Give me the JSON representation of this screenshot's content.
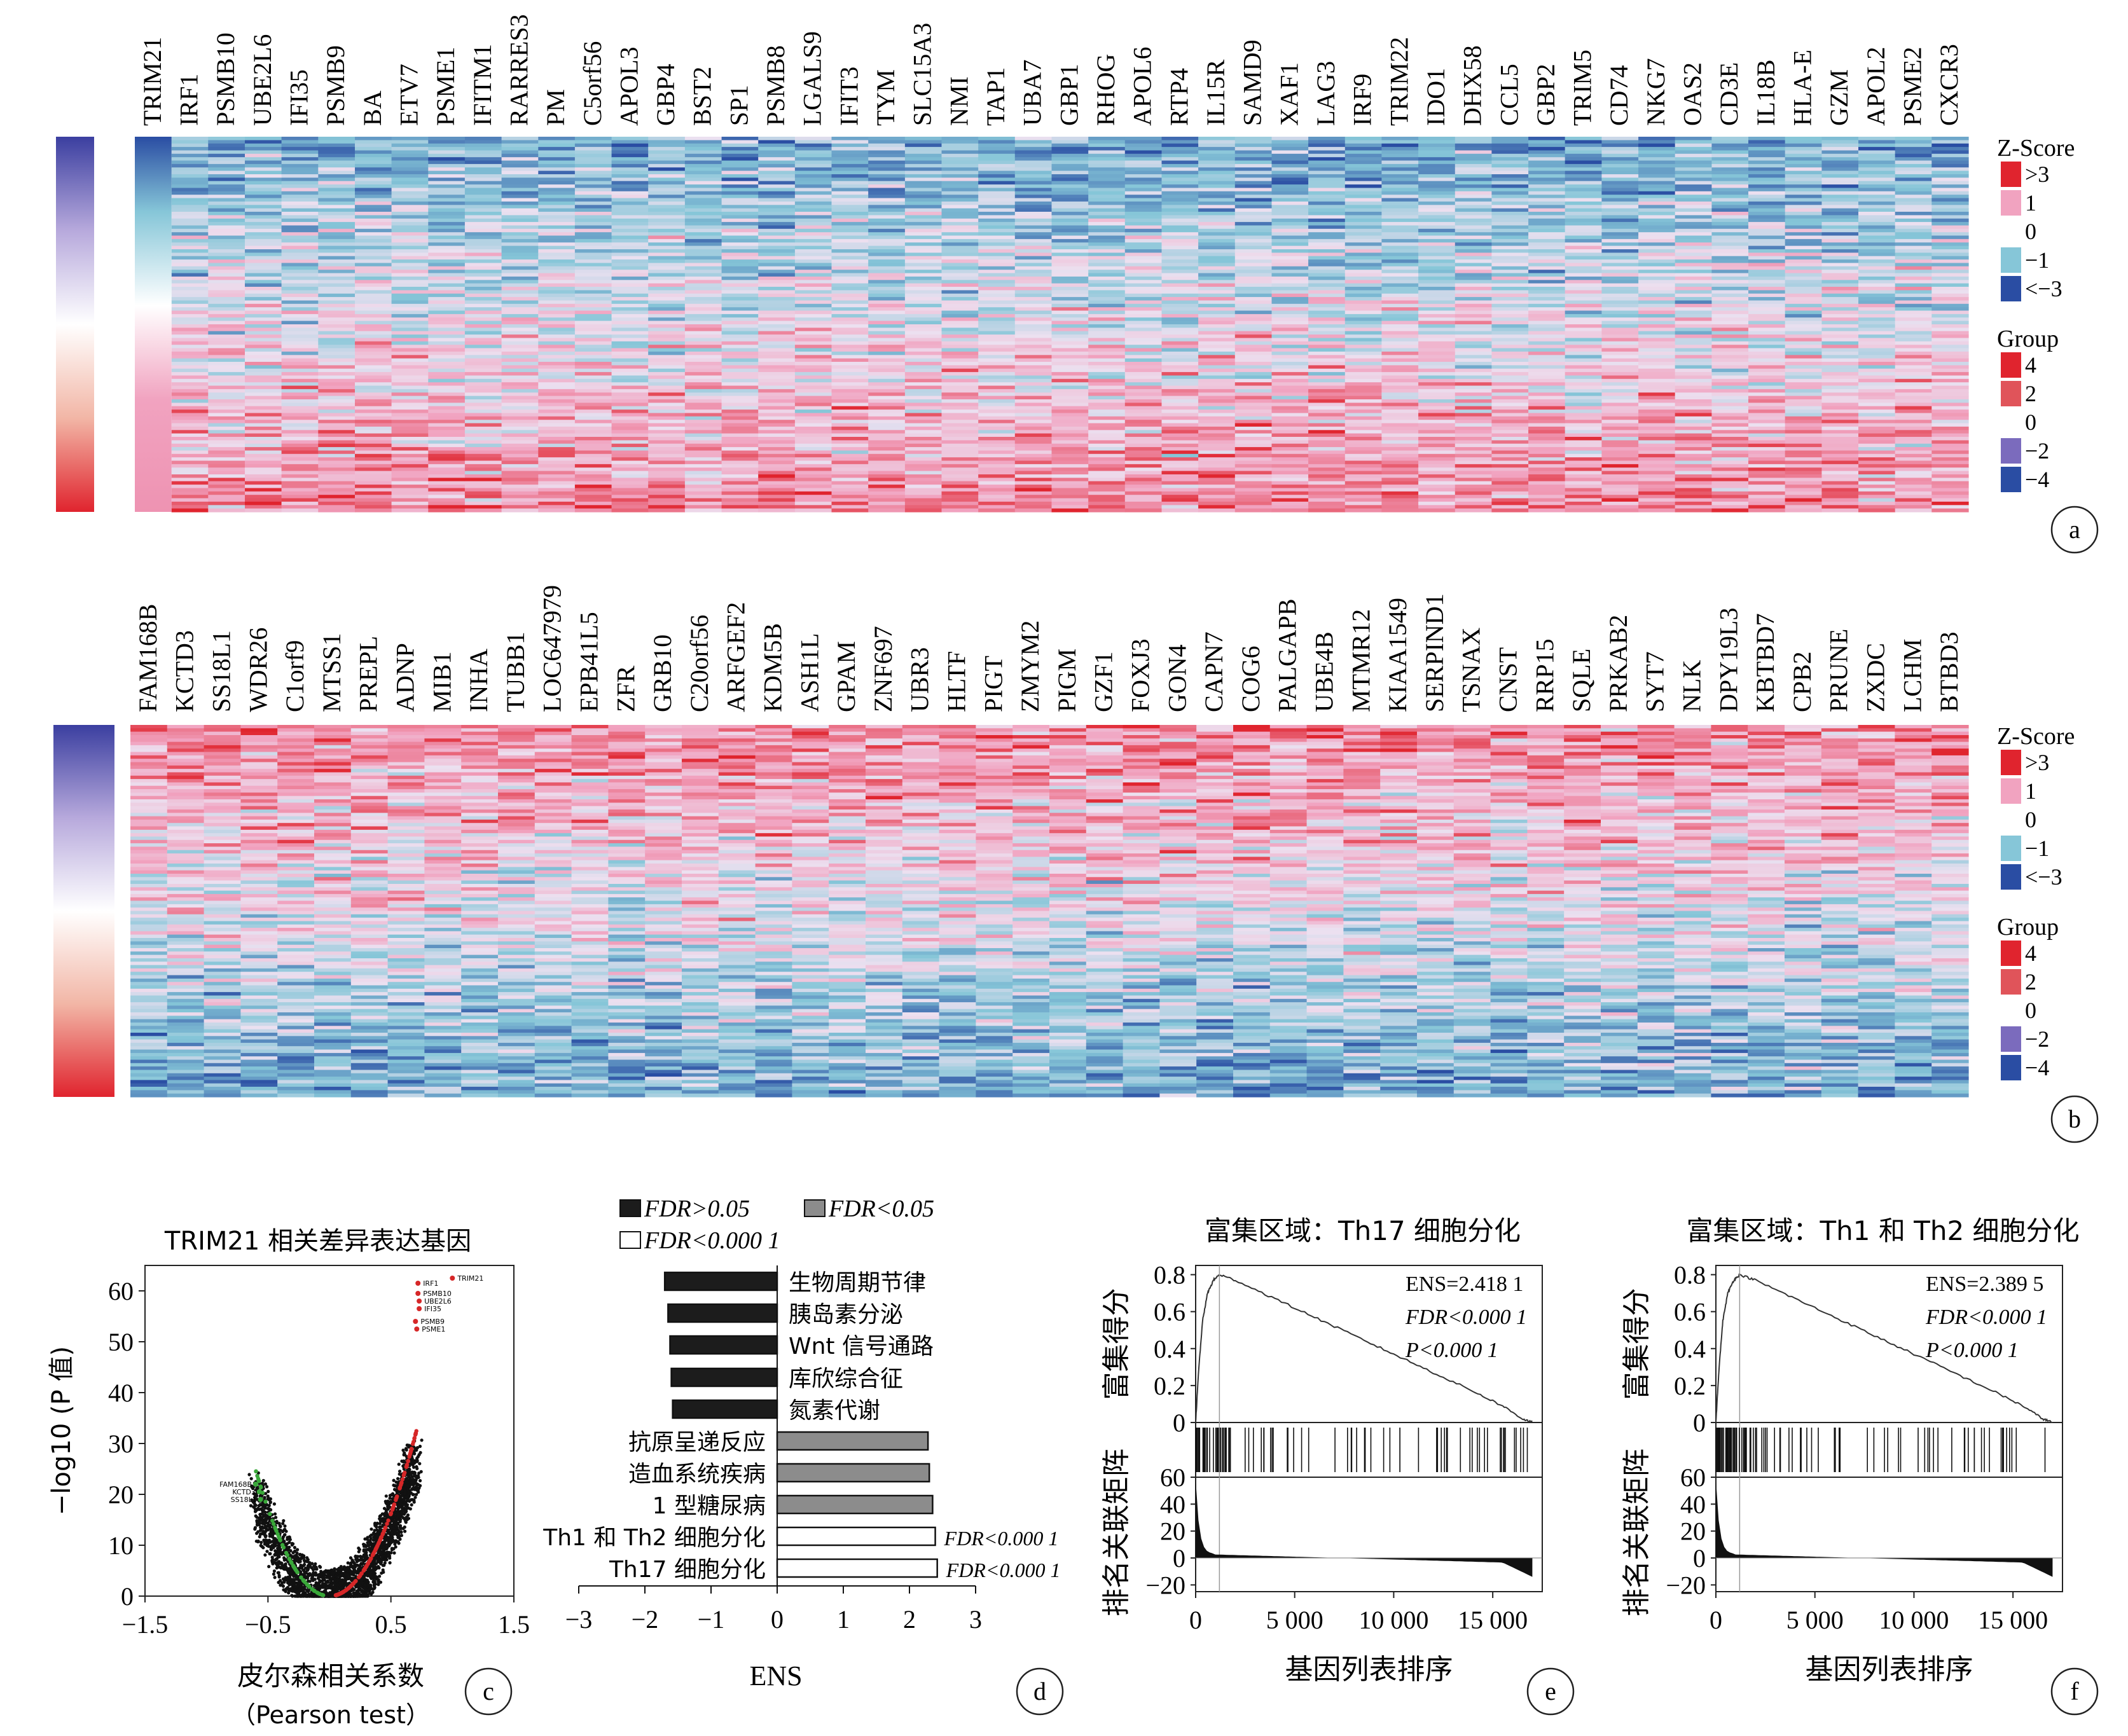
{
  "panel_letters": [
    "a",
    "b",
    "c",
    "d",
    "e",
    "f"
  ],
  "legend": {
    "z_score_title": "Z-Score",
    "z_score_items": [
      {
        "label": ">3",
        "color": "#e0242e"
      },
      {
        "label": "1",
        "color": "#f1a3c0"
      },
      {
        "label": "0",
        "color": "#ffffff"
      },
      {
        "label": "−1",
        "color": "#86c6d8"
      },
      {
        "label": "<−3",
        "color": "#2a4da3"
      }
    ],
    "group_title": "Group",
    "group_items": [
      {
        "label": "4",
        "color": "#e0242e"
      },
      {
        "label": "2",
        "color": "#e0545a"
      },
      {
        "label": "0",
        "color": "#ffffff"
      },
      {
        "label": "−2",
        "color": "#7b6bbd"
      },
      {
        "label": "−4",
        "color": "#2a4da3"
      }
    ]
  },
  "colors": {
    "heat_red": "#e0242e",
    "heat_pink": "#f1a3c0",
    "heat_cyan": "#86c6d8",
    "heat_blue": "#2a4da3",
    "heat_purple": "#7b6bbd",
    "volcano_red": "#d62728",
    "volcano_green": "#3aa83a",
    "gsea_line": "#333333"
  },
  "chart_data": [
    {
      "type": "heatmap",
      "panel": "a",
      "genes": [
        "TRIM21",
        "IRF1",
        "PSMB10",
        "UBE2L6",
        "IFI35",
        "PSMB9",
        "BA",
        "ETV7",
        "PSME1",
        "IFITM1",
        "RARRES3",
        "PM",
        "C5orf56",
        "APOL3",
        "GBP4",
        "BST2",
        "SP1",
        "PSMB8",
        "LGALS9",
        "IFIT3",
        "TYM",
        "SLC15A3",
        "NMI",
        "TAP1",
        "UBA7",
        "GBP1",
        "RHOG",
        "APOL6",
        "RTP4",
        "IL15R",
        "SAMD9",
        "XAF1",
        "LAG3",
        "IRF9",
        "TRIM22",
        "IDO1",
        "DHX58",
        "CCL5",
        "GBP2",
        "TRIM5",
        "CD74",
        "NKG7",
        "OAS2",
        "CD3E",
        "IL18B",
        "HLA-E",
        "GZM",
        "APOL2",
        "PSME2",
        "CXCR3"
      ],
      "trend": "blue at top, red at bottom (positively correlated with TRIM21)"
    },
    {
      "type": "heatmap",
      "panel": "b",
      "genes": [
        "FAM168B",
        "KCTD3",
        "SS18L1",
        "WDR26",
        "C1orf9",
        "MTSS1",
        "PREPL",
        "ADNP",
        "MIB1",
        "INHA",
        "TUBB1",
        "LOC647979",
        "EPB41L5",
        "ZFR",
        "GRB10",
        "C20orf56",
        "ARFGEF2",
        "KDM5B",
        "ASH1L",
        "GPAM",
        "ZNF697",
        "UBR3",
        "HLTF",
        "PIGT",
        "ZMYM2",
        "PIGM",
        "GZF1",
        "FOXJ3",
        "GON4",
        "CAPN7",
        "COG6",
        "PALGAPB",
        "UBE4B",
        "MTMR12",
        "KIAA1549",
        "SERPIND1",
        "TSNAX",
        "CNST",
        "RRP15",
        "SQLE",
        "PRKAB2",
        "SYT7",
        "NLK",
        "DPY19L3",
        "KBTBD7",
        "CPB2",
        "PRUNE",
        "ZXDC",
        "LCHM",
        "BTBD3"
      ],
      "trend": "red at top, blue at bottom (negatively correlated with TRIM21)"
    },
    {
      "type": "scatter",
      "panel": "c",
      "title": "TRIM21 相关差异表达基因",
      "xlabel": "皮尔森相关系数",
      "xlabel2": "（Pearson test）",
      "ylabel": "−log10 (P 值)",
      "xlim": [
        -1.5,
        1.5
      ],
      "ylim": [
        0,
        65
      ],
      "xticks": [
        "−1.5",
        "−0.5",
        "0.5",
        "1.5"
      ],
      "xtick_values": [
        -1.5,
        -0.5,
        0.5,
        1.5
      ],
      "yticks": [
        "0",
        "10",
        "20",
        "30",
        "40",
        "50",
        "60"
      ],
      "ytick_values": [
        0,
        10,
        20,
        30,
        40,
        50,
        60
      ],
      "highlight_labels": [
        {
          "text": "TRIM21",
          "x": 1.0,
          "y": 62.5
        },
        {
          "text": "IRF1",
          "x": 0.72,
          "y": 61.5
        },
        {
          "text": "PSMB10",
          "x": 0.72,
          "y": 59.5
        },
        {
          "text": "UBE2L6",
          "x": 0.73,
          "y": 58
        },
        {
          "text": "IFI35",
          "x": 0.73,
          "y": 56.5
        },
        {
          "text": "PSMB9",
          "x": 0.7,
          "y": 54
        },
        {
          "text": "PSME1",
          "x": 0.71,
          "y": 52.5
        },
        {
          "text": "FAM168B",
          "x": -0.6,
          "y": 22
        },
        {
          "text": "KCTD3",
          "x": -0.57,
          "y": 20.5
        },
        {
          "text": "SS18L1",
          "x": -0.56,
          "y": 19
        }
      ]
    },
    {
      "type": "bar",
      "panel": "d",
      "orientation": "horizontal",
      "xlabel": "ENS",
      "xlim": [
        -3,
        3
      ],
      "xticks": [
        "−3",
        "−2",
        "−1",
        "0",
        "1",
        "2",
        "3"
      ],
      "xtick_values": [
        -3,
        -2,
        -1,
        0,
        1,
        2,
        3
      ],
      "legend": [
        {
          "label": "FDR>0.05",
          "color": "#1c1c1c"
        },
        {
          "label": "FDR<0.05",
          "color": "#8c8c8c"
        },
        {
          "label": "FDR<0.000 1",
          "color": "#ffffff"
        }
      ],
      "categories": [
        "生物周期节律",
        "胰岛素分泌",
        "Wnt 信号通路",
        "库欣综合征",
        "氮素代谢",
        "抗原呈递反应",
        "造血系统疾病",
        "1 型糖尿病",
        "Th1 和 Th2 细胞分化",
        "Th17 细胞分化"
      ],
      "values": [
        -1.7,
        -1.65,
        -1.62,
        -1.6,
        -1.58,
        2.28,
        2.3,
        2.35,
        2.39,
        2.42
      ],
      "group": [
        0,
        0,
        0,
        0,
        0,
        1,
        1,
        1,
        2,
        2
      ],
      "annotations": [
        "",
        "",
        "",
        "",
        "",
        "",
        "",
        "",
        "FDR<0.000 1",
        "FDR<0.000 1"
      ]
    },
    {
      "type": "line",
      "panel": "e",
      "title": "富集区域：Th17 细胞分化",
      "ylabel_top": "富集得分",
      "ylabel_bottom": "排名关联矩阵",
      "xlabel": "基因列表排序",
      "stats": [
        "ENS=2.418 1",
        "FDR<0.000 1",
        "P<0.000 1"
      ],
      "xlim": [
        0,
        17500
      ],
      "es_ylim": [
        0,
        0.85
      ],
      "es_yticks": [
        "0",
        "0.2",
        "0.4",
        "0.6",
        "0.8"
      ],
      "es_ytick_values": [
        0,
        0.2,
        0.4,
        0.6,
        0.8
      ],
      "rank_ylim": [
        -25,
        60
      ],
      "rank_yticks": [
        "60",
        "40",
        "20",
        "0",
        "−20"
      ],
      "rank_ytick_values": [
        60,
        40,
        20,
        0,
        -20
      ],
      "xticks": [
        "0",
        "5 000",
        "10 000",
        "15 000"
      ],
      "xtick_values": [
        0,
        5000,
        10000,
        15000
      ],
      "peak_rank": 1200,
      "x": [
        0,
        150,
        350,
        600,
        900,
        1200,
        2000,
        4000,
        6000,
        8000,
        10000,
        12000,
        14000,
        15500,
        16500,
        17000
      ],
      "es": [
        0.0,
        0.28,
        0.55,
        0.7,
        0.77,
        0.8,
        0.77,
        0.67,
        0.57,
        0.47,
        0.37,
        0.27,
        0.17,
        0.09,
        0.02,
        0.0
      ]
    },
    {
      "type": "line",
      "panel": "f",
      "title": "富集区域：Th1 和 Th2 细胞分化",
      "ylabel_top": "富集得分",
      "ylabel_bottom": "排名关联矩阵",
      "xlabel": "基因列表排序",
      "stats": [
        "ENS=2.389 5",
        "FDR<0.000 1",
        "P<0.000 1"
      ],
      "xlim": [
        0,
        17500
      ],
      "es_ylim": [
        0,
        0.85
      ],
      "es_yticks": [
        "0",
        "0.2",
        "0.4",
        "0.6",
        "0.8"
      ],
      "es_ytick_values": [
        0,
        0.2,
        0.4,
        0.6,
        0.8
      ],
      "rank_ylim": [
        -25,
        60
      ],
      "rank_yticks": [
        "60",
        "40",
        "20",
        "0",
        "−20"
      ],
      "rank_ytick_values": [
        60,
        40,
        20,
        0,
        -20
      ],
      "xticks": [
        "0",
        "5 000",
        "10 000",
        "15 000"
      ],
      "xtick_values": [
        0,
        5000,
        10000,
        15000
      ],
      "peak_rank": 1200,
      "x": [
        0,
        150,
        350,
        600,
        900,
        1200,
        2000,
        4000,
        6000,
        8000,
        10000,
        12000,
        14000,
        15500,
        16500,
        17000
      ],
      "es": [
        0.0,
        0.28,
        0.55,
        0.7,
        0.77,
        0.8,
        0.77,
        0.67,
        0.57,
        0.47,
        0.37,
        0.27,
        0.17,
        0.09,
        0.02,
        0.0
      ]
    }
  ]
}
